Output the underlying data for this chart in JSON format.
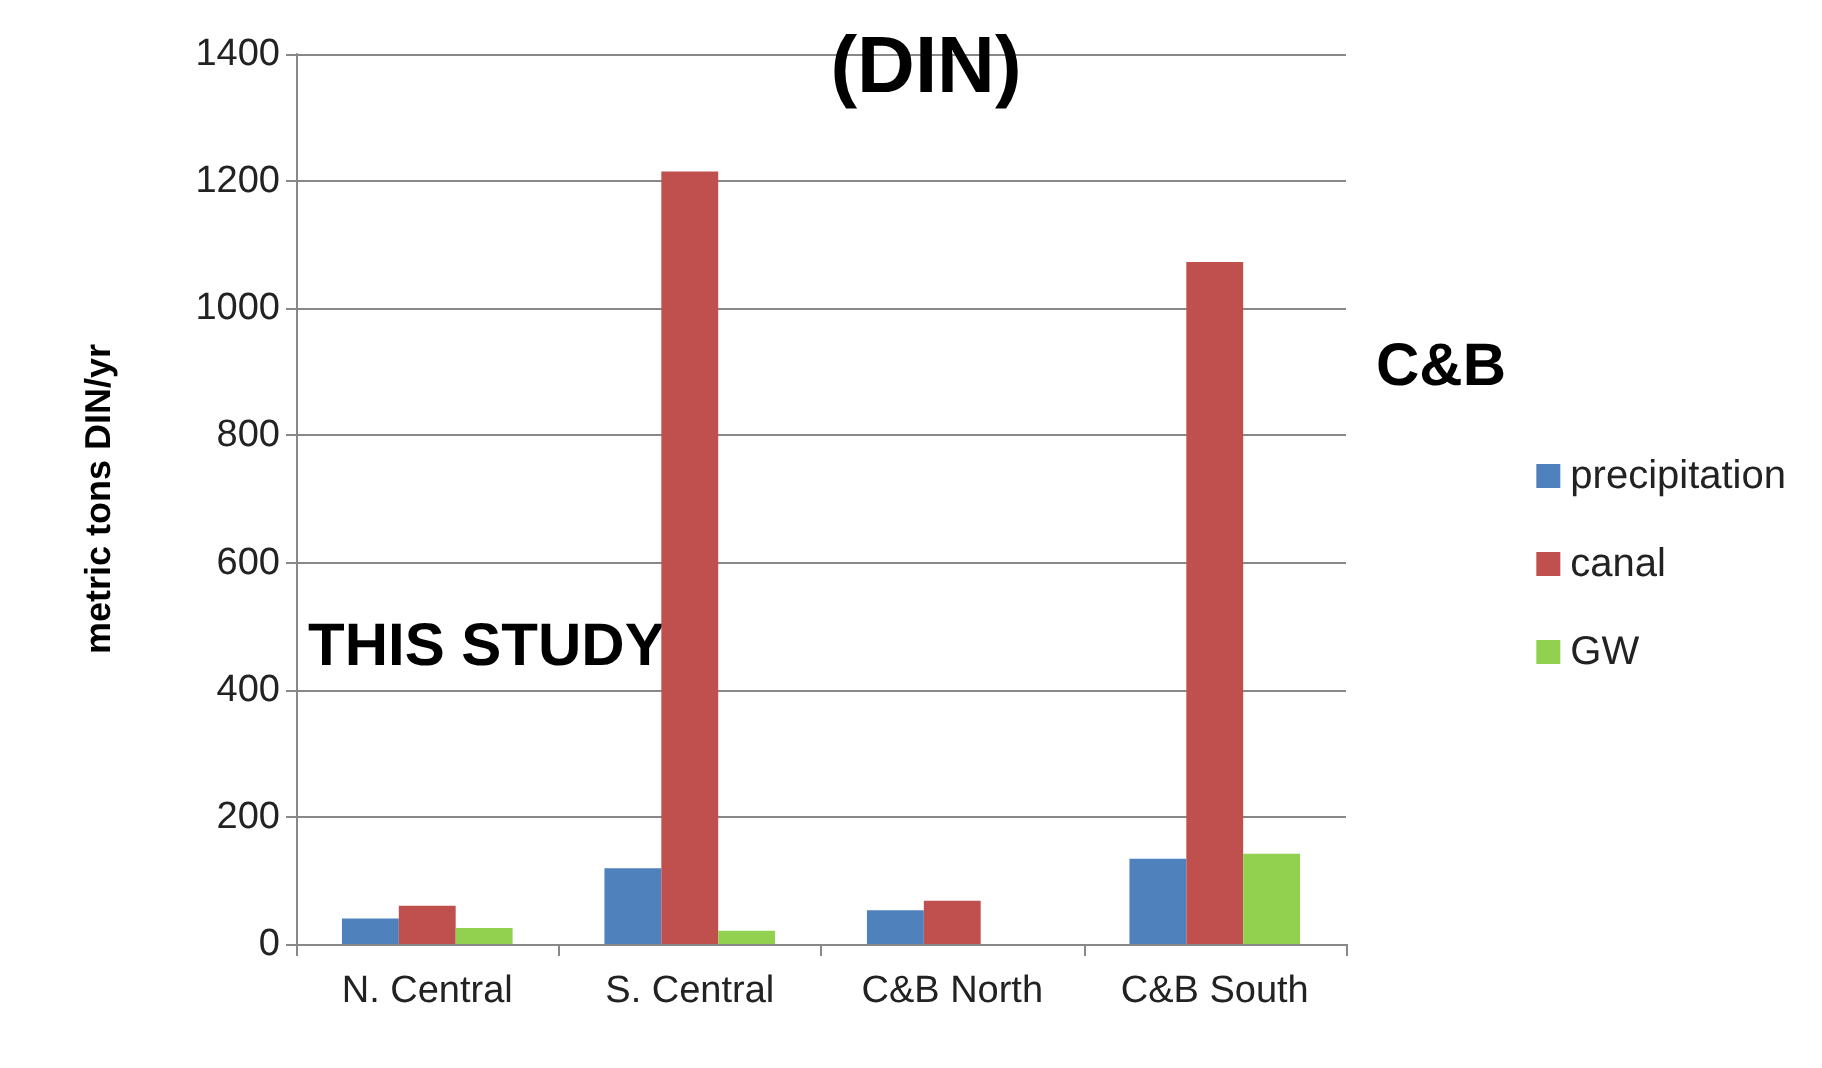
{
  "chart_data": {
    "type": "bar",
    "title": "(DIN)",
    "ylabel": "metric tons DIN/yr",
    "categories": [
      "N. Central",
      "S. Central",
      "C&B North",
      "C&B South"
    ],
    "series": [
      {
        "name": "precipitation",
        "color": "#4f81bd",
        "values": [
          40,
          119,
          53,
          134
        ]
      },
      {
        "name": "canal",
        "color": "#c0504d",
        "values": [
          60,
          1215,
          68,
          1073
        ]
      },
      {
        "name": "GW",
        "color": "#92d050",
        "values": [
          25,
          21,
          null,
          142
        ]
      }
    ],
    "ylim": [
      0,
      1400
    ],
    "yticks": [
      0,
      200,
      400,
      600,
      800,
      1000,
      1200,
      1400
    ],
    "grid": "y",
    "legend": "right",
    "annotations": [
      "THIS STUDY",
      "C&B"
    ]
  }
}
